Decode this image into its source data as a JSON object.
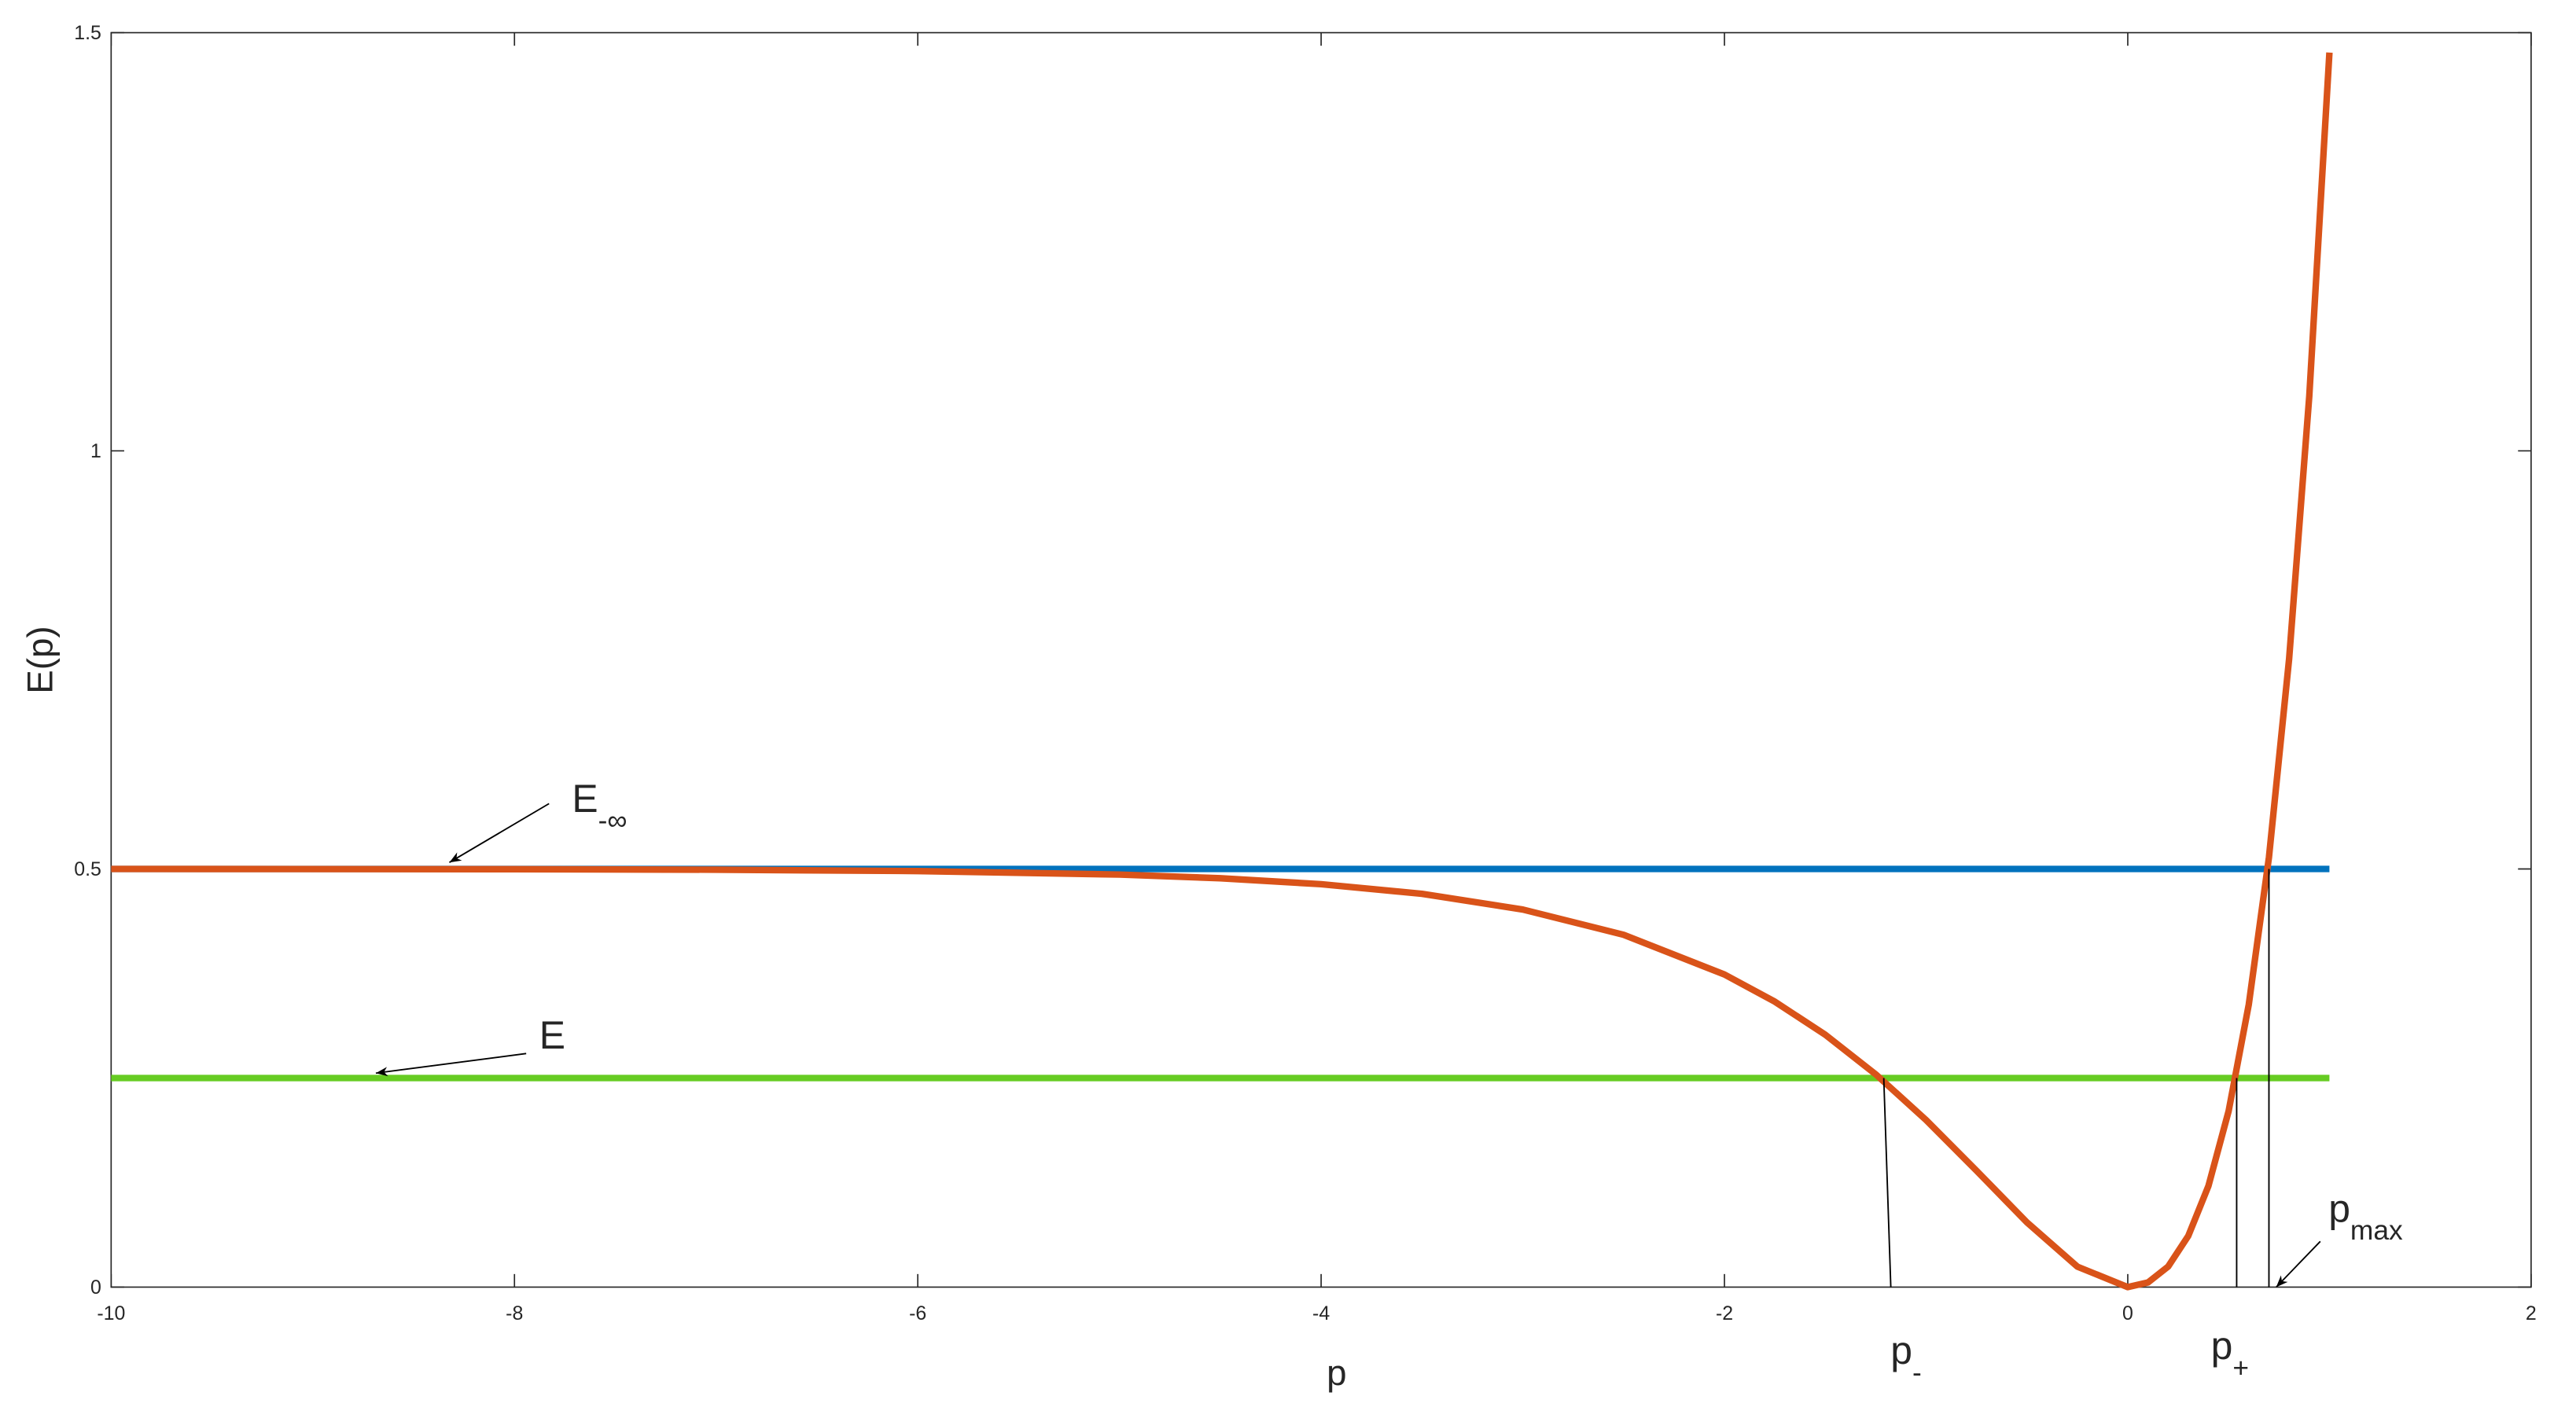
{
  "chart_data": {
    "type": "line",
    "xlabel": "p",
    "ylabel": "E(p)",
    "xlim": [
      -10,
      2
    ],
    "ylim": [
      0,
      1.5
    ],
    "xticks": [
      -10,
      -8,
      -6,
      -4,
      -2,
      0,
      2
    ],
    "yticks": [
      0,
      0.5,
      1,
      1.5
    ],
    "grid": false,
    "series": [
      {
        "color": "#0072bd",
        "x": [
          -10,
          1
        ],
        "values": [
          0.5,
          0.5
        ]
      },
      {
        "color": "#66cc22",
        "x": [
          -10,
          1
        ],
        "values": [
          0.25,
          0.25
        ]
      },
      {
        "color": "#d95319",
        "x": [
          -10,
          -8,
          -7,
          -6,
          -5,
          -4.5,
          -4,
          -3.5,
          -3,
          -2.5,
          -2,
          -1.75,
          -1.5,
          -1.25,
          -1,
          -0.75,
          -0.5,
          -0.25,
          0,
          0.1,
          0.2,
          0.3,
          0.4,
          0.5,
          0.6,
          0.7,
          0.8,
          0.9,
          1
        ],
        "values": [
          0.5,
          0.4997,
          0.4991,
          0.4975,
          0.4933,
          0.4889,
          0.4818,
          0.4703,
          0.4515,
          0.4213,
          0.3738,
          0.3413,
          0.3018,
          0.2545,
          0.1998,
          0.1392,
          0.0774,
          0.0245,
          0,
          0.0055,
          0.0245,
          0.0612,
          0.1209,
          0.2104,
          0.3379,
          0.5138,
          0.751,
          1.0652,
          1.4762
        ]
      },
      {
        "color": "#000000",
        "x": [
          -1.21,
          -1.175
        ],
        "values": [
          0.25,
          0
        ]
      },
      {
        "color": "#000000",
        "x": [
          0.54,
          0.54
        ],
        "values": [
          0.25,
          0
        ]
      },
      {
        "color": "#000000",
        "x": [
          0.7,
          0.7
        ],
        "values": [
          0.5,
          0
        ]
      }
    ],
    "annotations": [
      {
        "text": "E",
        "sub": "-∞"
      },
      {
        "text": "E"
      },
      {
        "text": "p",
        "sub": "-"
      },
      {
        "text": "p",
        "sub": "+"
      },
      {
        "text": "p",
        "sub": "max"
      }
    ]
  }
}
